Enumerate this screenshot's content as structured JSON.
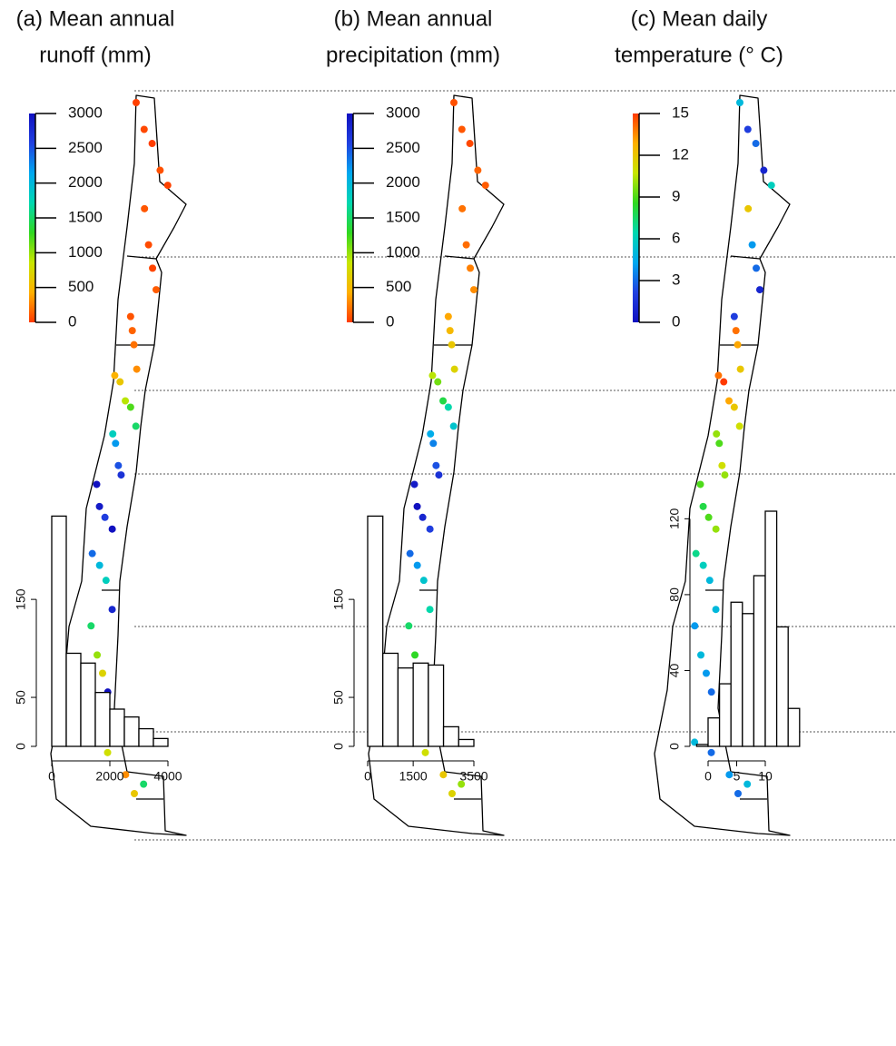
{
  "chart_data": [
    {
      "type": "map",
      "title": [
        "(a) Mean annual",
        "runoff (mm)"
      ],
      "clim": [
        0,
        3000
      ],
      "cticks": [
        0,
        500,
        1000,
        1500,
        2000,
        2500,
        3000
      ],
      "colormap": [
        "#ff3a00",
        "#ffb000",
        "#c8e600",
        "#30d820",
        "#00d8b0",
        "#00a8f0",
        "#2040e0",
        "#1010c0"
      ],
      "values": [
        20,
        50,
        10,
        80,
        30,
        100,
        60,
        40,
        120,
        90,
        150,
        200,
        300,
        450,
        600,
        900,
        1200,
        1500,
        1800,
        2200,
        2500,
        2700,
        3000,
        2900,
        2600,
        3000,
        2400,
        2000,
        1800,
        2800,
        1500,
        1000,
        700,
        3000,
        400,
        1200,
        800,
        300,
        1500,
        600
      ]
    },
    {
      "type": "map",
      "title": [
        "(b) Mean annual",
        "precipitation (mm)"
      ],
      "clim": [
        0,
        3000
      ],
      "cticks": [
        0,
        500,
        1000,
        1500,
        2000,
        2500,
        3000
      ],
      "colormap": [
        "#ff3a00",
        "#ffb000",
        "#c8e600",
        "#30d820",
        "#00d8b0",
        "#00a8f0",
        "#2040e0",
        "#1010c0"
      ],
      "values": [
        80,
        100,
        50,
        150,
        120,
        200,
        180,
        250,
        300,
        400,
        500,
        600,
        700,
        900,
        1100,
        1400,
        1700,
        1900,
        2100,
        2300,
        2500,
        2700,
        2900,
        3000,
        2800,
        2600,
        2400,
        2200,
        1900,
        1700,
        1500,
        1300,
        1100,
        2500,
        900,
        1200,
        800,
        600,
        1000,
        700
      ]
    },
    {
      "type": "map",
      "title": [
        "(c) Mean daily",
        "temperature (° C)"
      ],
      "clim": [
        0,
        15
      ],
      "cticks": [
        0,
        3,
        6,
        9,
        12,
        15
      ],
      "colormap": [
        "#1010c0",
        "#2040e0",
        "#00a8f0",
        "#00d8b0",
        "#30d820",
        "#c8e600",
        "#ffb000",
        "#ff3a00"
      ],
      "values": [
        5,
        2,
        3,
        1,
        6,
        12,
        4,
        3,
        1,
        2,
        14,
        13,
        12,
        14,
        15,
        13,
        12,
        11,
        10,
        9,
        11,
        10,
        9,
        8,
        9,
        10,
        7,
        6,
        5,
        5,
        4,
        5,
        4,
        3,
        4,
        5,
        3,
        4,
        5,
        3
      ]
    },
    {
      "type": "histogram",
      "bins": [
        0,
        500,
        1000,
        1500,
        2000,
        2500,
        3000,
        3500,
        4000
      ],
      "counts": [
        235,
        95,
        85,
        55,
        38,
        30,
        18,
        8
      ],
      "xlim": [
        0,
        4000
      ],
      "xticks": [
        0,
        2000,
        4000
      ],
      "ylim": [
        0,
        240
      ],
      "yticks": [
        0,
        50,
        150
      ]
    },
    {
      "type": "histogram",
      "bins": [
        0,
        500,
        1000,
        1500,
        2000,
        2500,
        3000,
        3500
      ],
      "counts": [
        235,
        95,
        80,
        85,
        83,
        20,
        7
      ],
      "xlim": [
        0,
        3500
      ],
      "xticks": [
        0,
        1500,
        3500
      ],
      "ylim": [
        0,
        240
      ],
      "yticks": [
        0,
        50,
        150
      ]
    },
    {
      "type": "histogram",
      "bins": [
        -2,
        0,
        2,
        4,
        6,
        8,
        10,
        12,
        14,
        16
      ],
      "counts": [
        1,
        15,
        33,
        76,
        70,
        90,
        124,
        63,
        20
      ],
      "xlim": [
        0,
        10
      ],
      "xticks": [
        0,
        5,
        10
      ],
      "ylim": [
        0,
        124
      ],
      "yticks": [
        0,
        40,
        80,
        120
      ]
    }
  ]
}
